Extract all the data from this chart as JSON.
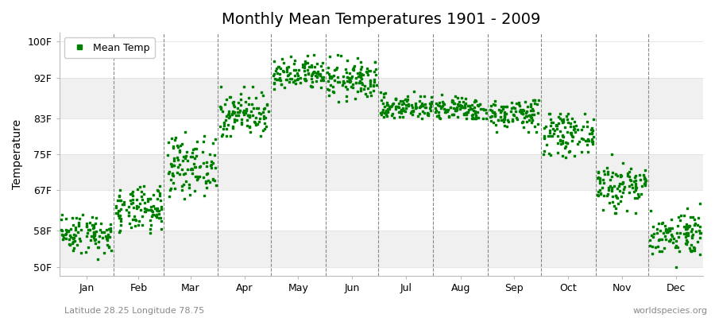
{
  "title": "Monthly Mean Temperatures 1901 - 2009",
  "ylabel": "Temperature",
  "yticks": [
    50,
    58,
    67,
    75,
    83,
    92,
    100
  ],
  "ytick_labels": [
    "50F",
    "58F",
    "67F",
    "75F",
    "83F",
    "92F",
    "100F"
  ],
  "ylim": [
    48,
    102
  ],
  "months": [
    "Jan",
    "Feb",
    "Mar",
    "Apr",
    "May",
    "Jun",
    "Jul",
    "Aug",
    "Sep",
    "Oct",
    "Nov",
    "Dec"
  ],
  "dot_color": "#008000",
  "dot_size": 3,
  "background_color": "#ffffff",
  "title_fontsize": 14,
  "axis_fontsize": 10,
  "tick_fontsize": 9,
  "legend_label": "Mean Temp",
  "subtitle_left": "Latitude 28.25 Longitude 78.75",
  "subtitle_right": "worldspecies.org",
  "years": 109,
  "monthly_means": [
    57.5,
    62.5,
    72.5,
    84.0,
    92.5,
    91.5,
    85.5,
    85.0,
    84.0,
    79.5,
    68.0,
    57.5
  ],
  "monthly_stds": [
    2.2,
    2.5,
    3.2,
    2.5,
    1.8,
    2.2,
    1.4,
    1.4,
    1.8,
    2.2,
    2.8,
    2.5
  ],
  "monthly_mins": [
    50,
    55,
    63,
    79,
    87,
    85,
    83,
    83,
    80,
    74,
    62,
    50
  ],
  "monthly_maxs": [
    63,
    68,
    80,
    90,
    97,
    97,
    89,
    89,
    87,
    84,
    75,
    64
  ],
  "stripe_colors_even": "#f0f0f0",
  "stripe_colors_odd": "#ffffff",
  "vline_color": "#888888",
  "grid_color": "#dddddd"
}
